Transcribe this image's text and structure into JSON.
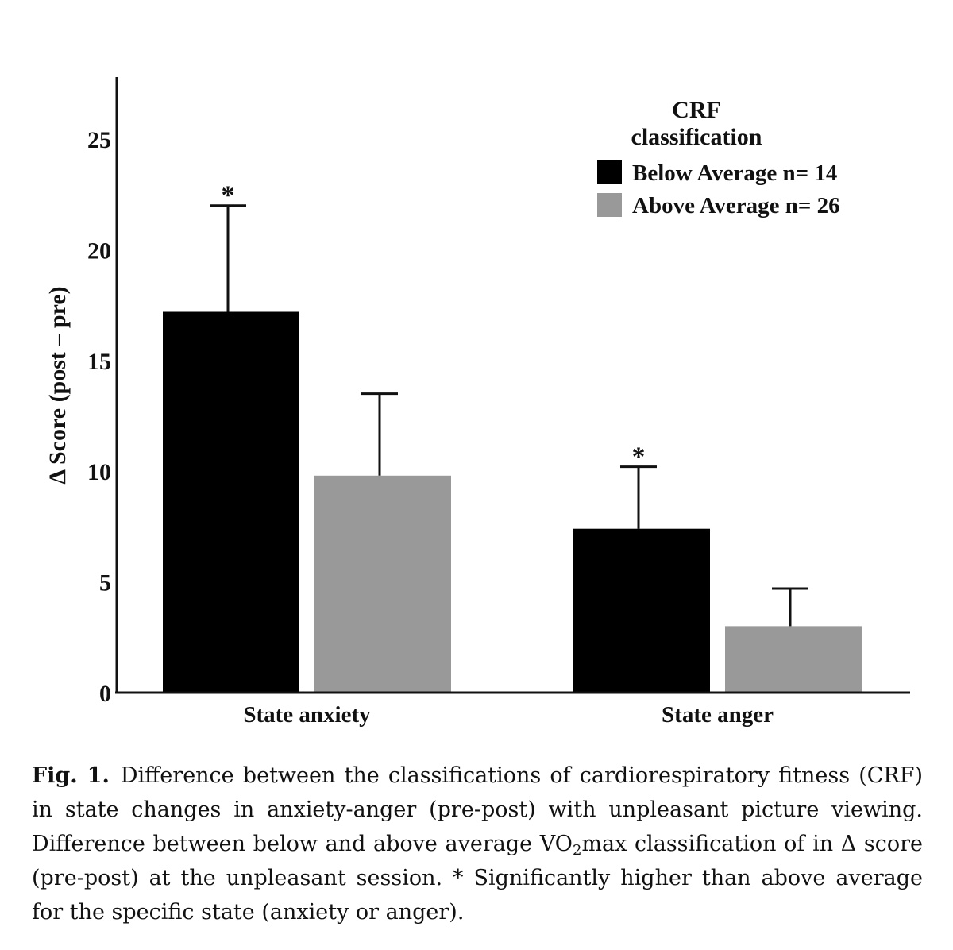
{
  "chart_data": {
    "type": "bar",
    "categories": [
      "State anxiety",
      "State anger"
    ],
    "series": [
      {
        "name": "Below Average n= 14",
        "values": [
          17.2,
          7.4
        ],
        "error": [
          4.8,
          2.8
        ],
        "color": "#000000",
        "significant": [
          true,
          true
        ]
      },
      {
        "name": "Above Average n= 26",
        "values": [
          9.8,
          3.0
        ],
        "error": [
          3.7,
          1.7
        ],
        "color": "#999999",
        "significant": [
          false,
          false
        ]
      }
    ],
    "ylabel": "Δ Score (post – pre)",
    "xlabel": "",
    "ylim": [
      0,
      27.8
    ],
    "yticks": [
      0,
      5,
      10,
      15,
      20,
      25
    ],
    "legend": {
      "title_line1": "CRF",
      "title_line2": "classification",
      "position": "top-right"
    },
    "significance_marker": "*",
    "grid": false
  },
  "caption": {
    "label": "Fig. 1.",
    "text_part1": "Difference between the classifications of cardiorespiratory fitness (CRF) in state changes in anxiety-anger (pre-post) with unpleasant picture viewing. Difference between below and above average VO",
    "subscript": "2",
    "text_part2": "max classification of in Δ score (pre-post) at the unpleasant session. * Significantly higher than above average for the specific state (anxiety or anger)."
  }
}
